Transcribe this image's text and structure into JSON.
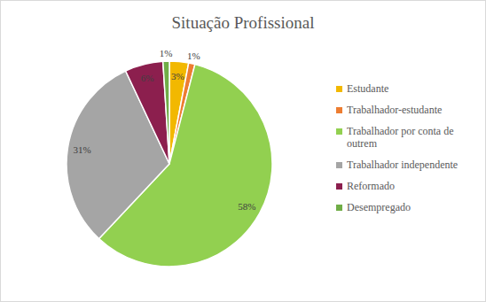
{
  "chart_data": {
    "type": "pie",
    "title": "Situação Profissional",
    "categories": [
      "Estudante",
      "Trabalhador-estudante",
      "Trabalhador por conta de outrem",
      "Trabalhador independente",
      "Reformado",
      "Desempregado"
    ],
    "values": [
      3,
      1,
      58,
      31,
      6,
      1
    ],
    "value_labels": [
      "3%",
      "1%",
      "58%",
      "31%",
      "6%",
      "1%"
    ],
    "colors": [
      "#f2b800",
      "#ed7d31",
      "#92d050",
      "#a5a5a5",
      "#8c1f4e",
      "#70ad47"
    ],
    "data_labels": true,
    "legend": "right"
  }
}
